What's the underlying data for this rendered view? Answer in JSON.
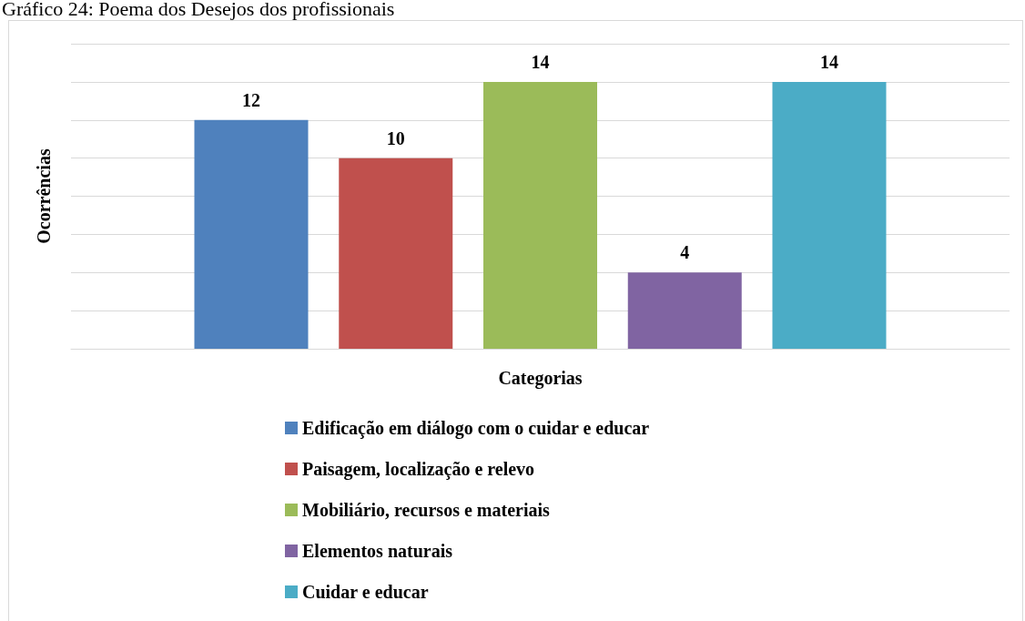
{
  "chart_data": {
    "type": "bar",
    "title": "Gráfico 24: Poema dos Desejos dos profissionais",
    "xlabel": "Categorias",
    "ylabel": "Ocorrências",
    "categories": [
      null
    ],
    "series": [
      {
        "name": "Edificação em diálogo com o cuidar e educar",
        "color": "#4f81bd",
        "values": [
          12
        ]
      },
      {
        "name": "Paisagem, localização e relevo",
        "color": "#c0504d",
        "values": [
          10
        ]
      },
      {
        "name": "Mobiliário, recursos e materiais",
        "color": "#9bbb59",
        "values": [
          14
        ]
      },
      {
        "name": "Elementos naturais",
        "color": "#8064a2",
        "values": [
          4
        ]
      },
      {
        "name": "Cuidar e educar",
        "color": "#4bacc6",
        "values": [
          14
        ]
      }
    ],
    "ylim": [
      0,
      16
    ],
    "yticks": [
      {
        "value": 0,
        "label": null
      },
      {
        "value": 2,
        "label": null
      },
      {
        "value": 4,
        "label": null
      },
      {
        "value": 6,
        "label": null
      },
      {
        "value": 8,
        "label": null
      },
      {
        "value": 10,
        "label": null
      },
      {
        "value": 12,
        "label": null
      },
      {
        "value": 14,
        "label": null
      },
      {
        "value": 16,
        "label": null
      }
    ],
    "grid": "y",
    "data_labels": true,
    "legend": "bottom"
  }
}
